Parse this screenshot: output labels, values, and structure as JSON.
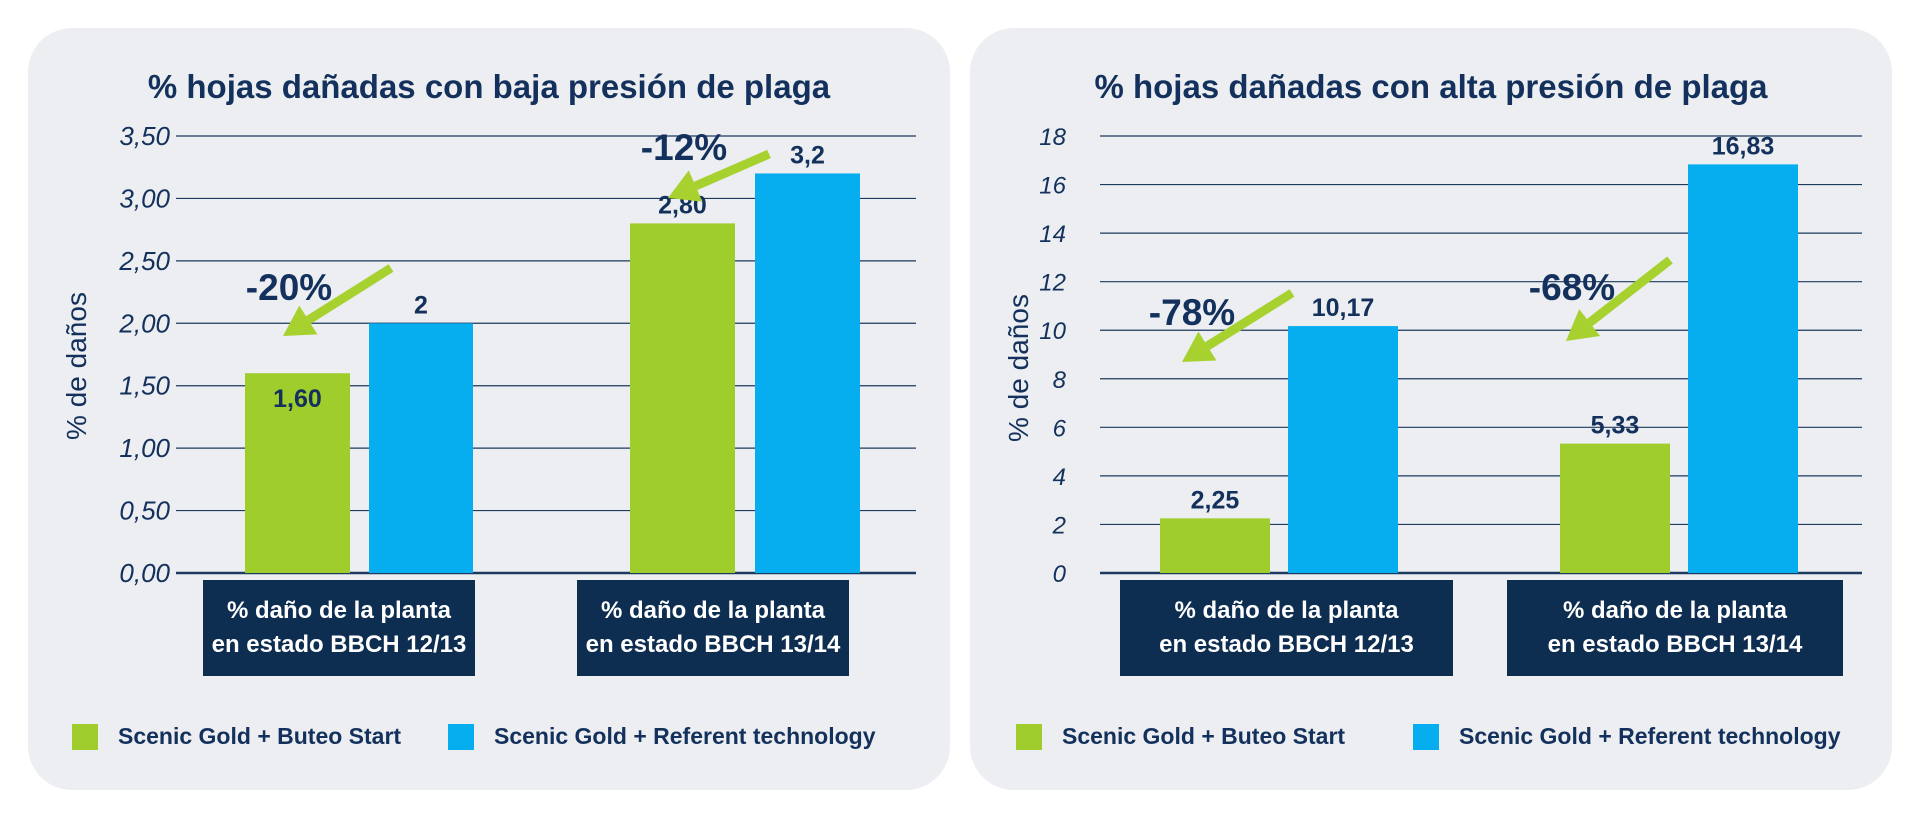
{
  "colors": {
    "green": "#9fcd2b",
    "blue": "#06aeef",
    "navy": "#13315c",
    "box": "#0d2d51",
    "grid": "#1d3a5f",
    "arrow": "#a6d12f"
  },
  "legend": [
    {
      "label": "Scenic Gold + Buteo Start",
      "color": "#9fcd2b"
    },
    {
      "label": "Scenic Gold + Referent technology",
      "color": "#06aeef"
    }
  ],
  "chart_data": [
    {
      "type": "bar",
      "title": "% hojas dañadas con baja presión de plaga",
      "ylabel": "% de daños",
      "xlabel": "",
      "ylim": [
        0,
        3.5
      ],
      "yticks": [
        "0,00",
        "0,50",
        "1,00",
        "1,50",
        "2,00",
        "2,50",
        "3,00",
        "3,50"
      ],
      "categories": [
        [
          "% daño de la planta",
          "en estado BBCH 12/13"
        ],
        [
          "% daño de la planta",
          "en estado BBCH 13/14"
        ]
      ],
      "series": [
        {
          "name": "Scenic Gold + Buteo Start",
          "values": [
            1.6,
            2.8
          ],
          "labels": [
            "1,60",
            "2,80"
          ]
        },
        {
          "name": "Scenic Gold + Referent technology",
          "values": [
            2.0,
            3.2
          ],
          "labels": [
            "2",
            "3,2"
          ]
        }
      ],
      "annotations": [
        "-20%",
        "-12%"
      ],
      "grid": true,
      "legend_position": "bottom"
    },
    {
      "type": "bar",
      "title": "% hojas dañadas con alta presión de plaga",
      "ylabel": "% de daños",
      "xlabel": "",
      "ylim": [
        0,
        18
      ],
      "yticks": [
        "0",
        "2",
        "4",
        "6",
        "8",
        "10",
        "12",
        "14",
        "16",
        "18"
      ],
      "categories": [
        [
          "% daño de la planta",
          "en estado BBCH 12/13"
        ],
        [
          "% daño de la planta",
          "en estado BBCH 13/14"
        ]
      ],
      "series": [
        {
          "name": "Scenic Gold + Buteo Start",
          "values": [
            2.25,
            5.33
          ],
          "labels": [
            "2,25",
            "5,33"
          ]
        },
        {
          "name": "Scenic Gold + Referent technology",
          "values": [
            10.17,
            16.83
          ],
          "labels": [
            "10,17",
            "16,83"
          ]
        }
      ],
      "annotations": [
        "-78%",
        "-68%"
      ],
      "grid": true,
      "legend_position": "bottom"
    }
  ]
}
